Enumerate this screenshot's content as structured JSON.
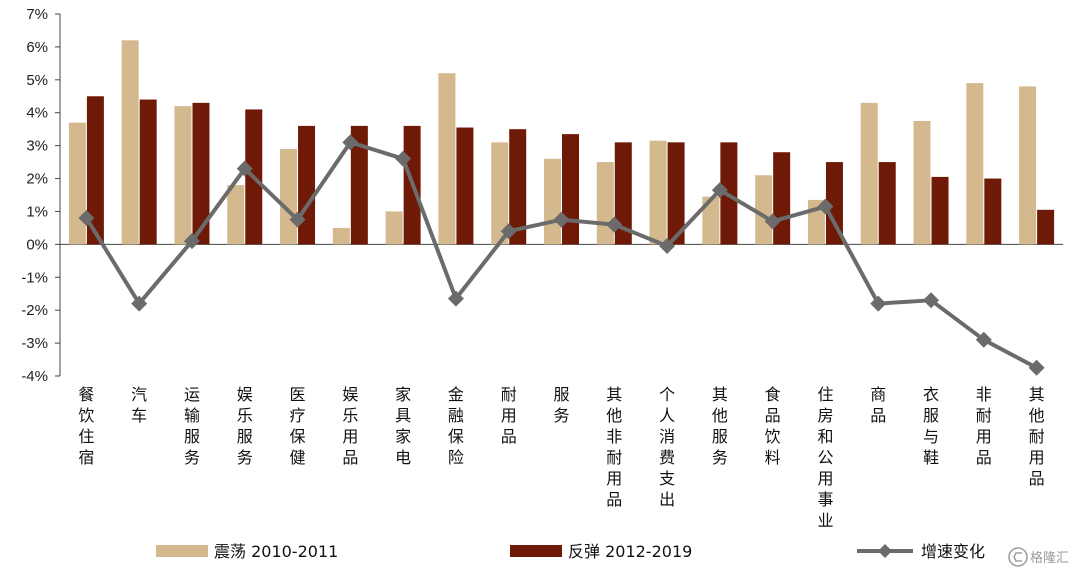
{
  "chart_data": {
    "type": "bar",
    "title": "",
    "xlabel": "",
    "ylabel": "",
    "ylim": [
      -4,
      7
    ],
    "y_ticks": [
      "7%",
      "6%",
      "5%",
      "4%",
      "3%",
      "2%",
      "1%",
      "0%",
      "-1%",
      "-2%",
      "-3%",
      "-4%"
    ],
    "y_tick_values": [
      7,
      6,
      5,
      4,
      3,
      2,
      1,
      0,
      -1,
      -2,
      -3,
      -4
    ],
    "grid": false,
    "legend_position": "bottom",
    "categories": [
      "餐饮住宿",
      "汽车",
      "运输服务",
      "娱乐服务",
      "医疗保健",
      "娱乐用品",
      "家具家电",
      "金融保险",
      "耐用品",
      "服务",
      "其他非耐用品",
      "个人消费支出",
      "其他服务",
      "食品饮料",
      "住房和公用事业",
      "商品",
      "衣服与鞋",
      "非耐用品",
      "其他耐用品"
    ],
    "series": [
      {
        "name": "震荡 2010-2011",
        "kind": "bar",
        "color": "#d4b88e",
        "values": [
          3.7,
          6.2,
          4.2,
          1.8,
          2.9,
          0.5,
          1.0,
          5.2,
          3.1,
          2.6,
          2.5,
          3.15,
          1.45,
          2.1,
          1.35,
          4.3,
          3.75,
          4.9,
          4.8
        ]
      },
      {
        "name": "反弹 2012-2019",
        "kind": "bar",
        "color": "#6e1a07",
        "values": [
          4.5,
          4.4,
          4.3,
          4.1,
          3.6,
          3.6,
          3.6,
          3.55,
          3.5,
          3.35,
          3.1,
          3.1,
          3.1,
          2.8,
          2.5,
          2.5,
          2.05,
          2.0,
          1.05
        ]
      },
      {
        "name": "增速变化",
        "kind": "line",
        "color": "#6b6b6b",
        "values": [
          0.8,
          -1.8,
          0.1,
          2.3,
          0.75,
          3.1,
          2.6,
          -1.65,
          0.4,
          0.75,
          0.6,
          -0.05,
          1.65,
          0.7,
          1.15,
          -1.8,
          -1.7,
          -2.9,
          -3.75
        ]
      }
    ]
  },
  "watermark": {
    "text": "格隆汇",
    "icon": "glh-logo-icon"
  }
}
